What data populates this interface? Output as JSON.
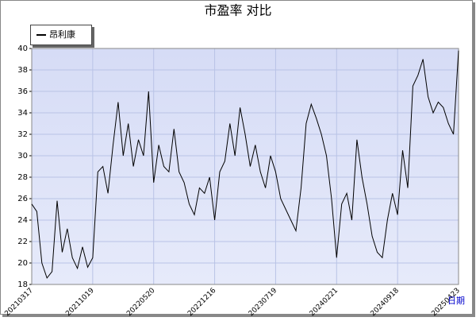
{
  "chart_data": {
    "type": "line",
    "title": "市盈率  对比",
    "x_label": "日期",
    "x": [
      "20210317",
      "20210406",
      "20210426",
      "20210517",
      "20210604",
      "20210624",
      "20210714",
      "20210803",
      "20210823",
      "20210910",
      "20210930",
      "20211008",
      "20211019",
      "20211108",
      "20211126",
      "20211216",
      "20220106",
      "20220126",
      "20220218",
      "20220310",
      "20220330",
      "20220420",
      "20220506",
      "20220512",
      "20220520",
      "20220609",
      "20220629",
      "20220719",
      "20220808",
      "20220826",
      "20220915",
      "20221011",
      "20221031",
      "20221118",
      "20221205",
      "20221209",
      "20221216",
      "20230106",
      "20230130",
      "20230217",
      "20230309",
      "20230329",
      "20230420",
      "20230512",
      "20230601",
      "20230621",
      "20230710",
      "20230714",
      "20230719",
      "20230808",
      "20230828",
      "20230915",
      "20231011",
      "20231031",
      "20231120",
      "20231208",
      "20231228",
      "20240118",
      "20240207",
      "20240215",
      "20240221",
      "20240312",
      "20240401",
      "20240422",
      "20240514",
      "20240603",
      "20240624",
      "20240712",
      "20240801",
      "20240821",
      "20240906",
      "20240912",
      "20240918",
      "20241014",
      "20241101",
      "20241121",
      "20241211",
      "20241231",
      "20250121",
      "20250214",
      "20250306",
      "20250326",
      "20250414",
      "20250418",
      "20250423"
    ],
    "series": [
      {
        "name": "昂利康",
        "color": "#000000",
        "values": [
          25.5,
          24.8,
          20,
          18.6,
          19.2,
          25.8,
          21,
          23.2,
          20.5,
          19.5,
          21.5,
          19.6,
          20.5,
          28.5,
          29,
          26.5,
          31,
          35,
          30,
          33,
          29,
          31.5,
          30,
          36,
          27.5,
          31,
          29,
          28.5,
          32.5,
          28.5,
          27.5,
          25.5,
          24.5,
          27,
          26.5,
          28,
          24,
          28.5,
          29.5,
          33,
          30,
          34.5,
          32,
          29,
          31,
          28.5,
          27,
          30,
          28.5,
          26,
          25,
          24,
          23,
          27,
          33,
          34.8,
          33.5,
          32,
          30,
          26,
          20.5,
          25.5,
          26.5,
          24,
          31.5,
          28,
          25.5,
          22.5,
          21,
          20.5,
          24,
          26.5,
          24.5,
          30.5,
          27,
          36.5,
          37.5,
          39,
          35.5,
          34,
          35,
          34.5,
          33,
          32,
          39.8
        ]
      }
    ],
    "xticks": [
      "20210317",
      "20211019",
      "20220520",
      "20221216",
      "20230719",
      "20240221",
      "20240918",
      "20250423"
    ],
    "ylim": [
      18,
      40
    ],
    "yticks": [
      18,
      20,
      22,
      24,
      26,
      28,
      30,
      32,
      34,
      36,
      38,
      40
    ],
    "grid": true,
    "legend": "top-left"
  }
}
